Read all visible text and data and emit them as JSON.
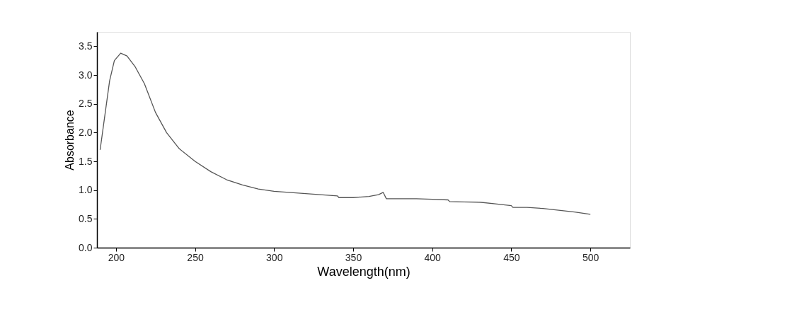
{
  "chart_data": {
    "type": "line",
    "xlabel": "Wavelength(nm)",
    "ylabel": "Absorbance",
    "xlim": [
      188,
      525
    ],
    "ylim": [
      0,
      3.75
    ],
    "xticks": [
      200,
      250,
      300,
      350,
      400,
      450,
      500
    ],
    "yticks": [
      {
        "value": 0,
        "label": "0.0"
      },
      0.5,
      {
        "value": 1,
        "label": "1.0"
      },
      1.5,
      {
        "value": 2,
        "label": "2.0"
      },
      2.5,
      {
        "value": 3,
        "label": "3.0"
      },
      3.5
    ],
    "grid": false,
    "legend": false,
    "marker": "none",
    "line_style": "solid",
    "series": [
      {
        "color": "#555555",
        "x": [
          190,
          193,
          196,
          199,
          203,
          207,
          212,
          218,
          225,
          232,
          240,
          250,
          260,
          270,
          280,
          290,
          300,
          320,
          340,
          341,
          350,
          360,
          366,
          369,
          371,
          390,
          400,
          410,
          411,
          420,
          430,
          440,
          450,
          451,
          460,
          470,
          480,
          490,
          500
        ],
        "values": [
          1.7,
          2.3,
          2.9,
          3.25,
          3.38,
          3.33,
          3.15,
          2.85,
          2.35,
          2.0,
          1.72,
          1.5,
          1.32,
          1.18,
          1.09,
          1.02,
          0.98,
          0.94,
          0.9,
          0.87,
          0.87,
          0.89,
          0.92,
          0.96,
          0.85,
          0.85,
          0.84,
          0.83,
          0.8,
          0.795,
          0.79,
          0.76,
          0.73,
          0.7,
          0.7,
          0.68,
          0.65,
          0.62,
          0.58
        ]
      }
    ]
  }
}
